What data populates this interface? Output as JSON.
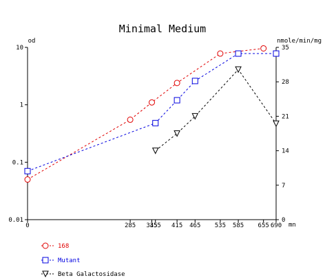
{
  "chart_data": {
    "type": "line",
    "title": "Minimal Medium",
    "left_axis": {
      "label": "od",
      "scale": "log",
      "range": [
        0.01,
        10
      ],
      "ticks": [
        {
          "value": 10,
          "label": "10"
        },
        {
          "value": 1,
          "label": "1"
        },
        {
          "value": 0.1,
          "label": "0.1"
        },
        {
          "value": 0.01,
          "label": "0.01"
        }
      ]
    },
    "right_axis": {
      "label": "nmole/min/mg",
      "scale": "linear",
      "range": [
        0,
        35
      ],
      "ticks": [
        {
          "value": 35,
          "label": "35"
        },
        {
          "value": 28,
          "label": "28"
        },
        {
          "value": 21,
          "label": "21"
        },
        {
          "value": 14,
          "label": "14"
        },
        {
          "value": 7,
          "label": "7"
        },
        {
          "value": 0,
          "label": "0"
        }
      ]
    },
    "x_axis": {
      "label": "mn",
      "range": [
        0,
        690
      ],
      "ticks": [
        {
          "value": 0,
          "label": "0"
        },
        {
          "value": 285,
          "label": "285"
        },
        {
          "value": 345,
          "label": "345"
        },
        {
          "value": 355,
          "label": "355"
        },
        {
          "value": 415,
          "label": "415"
        },
        {
          "value": 465,
          "label": "465"
        },
        {
          "value": 535,
          "label": "535"
        },
        {
          "value": 585,
          "label": "585"
        },
        {
          "value": 655,
          "label": "655"
        },
        {
          "value": 690,
          "label": "690"
        }
      ]
    },
    "series": [
      {
        "name": "168",
        "axis": "left",
        "marker": "circle",
        "color": "#e00000",
        "x": [
          0,
          285,
          345,
          415,
          535,
          655
        ],
        "y": [
          0.05,
          0.55,
          1.1,
          2.4,
          7.8,
          9.6
        ]
      },
      {
        "name": "Mutant",
        "axis": "left",
        "marker": "square",
        "color": "#0000e0",
        "x": [
          0,
          355,
          415,
          465,
          585,
          690
        ],
        "y": [
          0.07,
          0.48,
          1.2,
          2.6,
          7.8,
          7.8
        ]
      },
      {
        "name": "Beta Galactosidase",
        "axis": "right",
        "marker": "triangle-down",
        "color": "#000000",
        "x": [
          355,
          415,
          465,
          585,
          690
        ],
        "y": [
          14,
          17.5,
          21,
          30.5,
          19.5
        ]
      }
    ]
  }
}
